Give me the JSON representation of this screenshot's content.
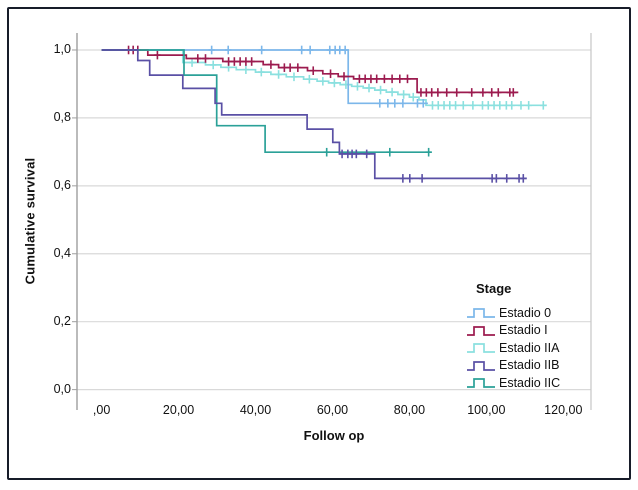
{
  "figure": {
    "ylabel": "Cumulative survival",
    "xlabel": "Follow op",
    "legend_title": "Stage"
  },
  "colors": {
    "grid": "#d9d9d9",
    "axis_line": "#9e9e9e",
    "right_border": "#c6c6c6",
    "figure_border": "#171c29",
    "text": "#111111"
  },
  "chart_data": {
    "type": "line",
    "subtype": "kaplan_meier_step",
    "title": "",
    "xlabel": "Follow op",
    "ylabel": "Cumulative survival",
    "legend_title": "Stage",
    "legend_position": "inside-right-bottom",
    "grid": "horizontal-only",
    "xlim": [
      -6.4,
      127.2
    ],
    "ylim": [
      -0.06,
      1.05
    ],
    "x_ticks": [
      0,
      20,
      40,
      60,
      80,
      100,
      120
    ],
    "x_tick_labels": [
      ",00",
      "20,00",
      "40,00",
      "60,00",
      "80,00",
      "100,00",
      "120,00"
    ],
    "y_ticks": [
      1.0,
      0.8,
      0.6,
      0.4,
      0.2,
      0.0
    ],
    "y_tick_labels": [
      "1,0",
      "0,8",
      "0,6",
      "0,4",
      "0,2",
      "0,0"
    ],
    "series": [
      {
        "name": "Estadio 0",
        "color": "#7cb7ea",
        "points": [
          [
            0,
            1
          ],
          [
            64.1,
            1
          ],
          [
            64.1,
            0.843
          ],
          [
            84.8,
            0.843
          ]
        ],
        "censors": [
          [
            28.6,
            1
          ],
          [
            32.9,
            1
          ],
          [
            41.6,
            1
          ],
          [
            52,
            1
          ],
          [
            54.2,
            1
          ],
          [
            59.3,
            1
          ],
          [
            60.7,
            1
          ],
          [
            61.9,
            1
          ],
          [
            63.3,
            1
          ],
          [
            72.3,
            0.843
          ],
          [
            74.4,
            0.843
          ],
          [
            76.2,
            0.843
          ],
          [
            78.3,
            0.843
          ],
          [
            82.1,
            0.843
          ],
          [
            83.6,
            0.843
          ]
        ]
      },
      {
        "name": "Estadio I",
        "color": "#9c1b4f",
        "points": [
          [
            0,
            1
          ],
          [
            12,
            1
          ],
          [
            12,
            0.985
          ],
          [
            22,
            0.985
          ],
          [
            22,
            0.975
          ],
          [
            31.5,
            0.975
          ],
          [
            31.5,
            0.966
          ],
          [
            42,
            0.966
          ],
          [
            42,
            0.957
          ],
          [
            46,
            0.957
          ],
          [
            46,
            0.948
          ],
          [
            53.5,
            0.948
          ],
          [
            53.5,
            0.939
          ],
          [
            57.5,
            0.939
          ],
          [
            57.5,
            0.93
          ],
          [
            61.5,
            0.93
          ],
          [
            61.5,
            0.922
          ],
          [
            65.5,
            0.922
          ],
          [
            65.5,
            0.915
          ],
          [
            82,
            0.915
          ],
          [
            82,
            0.875
          ],
          [
            108.3,
            0.875
          ]
        ],
        "censors": [
          [
            7,
            1
          ],
          [
            8.2,
            1
          ],
          [
            9.4,
            1
          ],
          [
            14.5,
            0.985
          ],
          [
            25,
            0.975
          ],
          [
            27,
            0.975
          ],
          [
            33,
            0.966
          ],
          [
            34.5,
            0.966
          ],
          [
            36,
            0.966
          ],
          [
            37.5,
            0.966
          ],
          [
            39,
            0.966
          ],
          [
            44,
            0.957
          ],
          [
            47.5,
            0.948
          ],
          [
            49,
            0.948
          ],
          [
            51,
            0.948
          ],
          [
            55,
            0.939
          ],
          [
            59.5,
            0.93
          ],
          [
            63,
            0.922
          ],
          [
            67,
            0.915
          ],
          [
            68.5,
            0.915
          ],
          [
            70,
            0.915
          ],
          [
            71.5,
            0.915
          ],
          [
            73.5,
            0.915
          ],
          [
            75.5,
            0.915
          ],
          [
            77.5,
            0.915
          ],
          [
            79.5,
            0.915
          ],
          [
            83,
            0.875
          ],
          [
            84.4,
            0.875
          ],
          [
            85.8,
            0.875
          ],
          [
            87.4,
            0.875
          ],
          [
            89.7,
            0.875
          ],
          [
            92.3,
            0.875
          ],
          [
            96.2,
            0.875
          ],
          [
            99.1,
            0.875
          ],
          [
            101.4,
            0.875
          ],
          [
            103.1,
            0.875
          ],
          [
            106.1,
            0.875
          ],
          [
            107,
            0.875
          ]
        ]
      },
      {
        "name": "Estadio IIA",
        "color": "#8be0df",
        "points": [
          [
            0,
            1
          ],
          [
            21.1,
            1
          ],
          [
            21.1,
            0.963
          ],
          [
            27,
            0.963
          ],
          [
            27,
            0.956
          ],
          [
            31,
            0.956
          ],
          [
            31,
            0.949
          ],
          [
            35,
            0.949
          ],
          [
            35,
            0.942
          ],
          [
            40,
            0.942
          ],
          [
            40,
            0.935
          ],
          [
            44,
            0.935
          ],
          [
            44,
            0.928
          ],
          [
            48,
            0.928
          ],
          [
            48,
            0.921
          ],
          [
            52.5,
            0.921
          ],
          [
            52.5,
            0.914
          ],
          [
            56,
            0.914
          ],
          [
            56,
            0.908
          ],
          [
            59,
            0.908
          ],
          [
            59,
            0.903
          ],
          [
            62,
            0.903
          ],
          [
            62,
            0.898
          ],
          [
            65,
            0.898
          ],
          [
            65,
            0.893
          ],
          [
            68,
            0.893
          ],
          [
            68,
            0.888
          ],
          [
            71,
            0.888
          ],
          [
            71,
            0.882
          ],
          [
            74,
            0.882
          ],
          [
            74,
            0.876
          ],
          [
            77,
            0.876
          ],
          [
            77,
            0.869
          ],
          [
            80,
            0.869
          ],
          [
            80,
            0.861
          ],
          [
            82.5,
            0.861
          ],
          [
            82.5,
            0.853
          ],
          [
            84.3,
            0.853
          ],
          [
            84.3,
            0.837
          ],
          [
            115.7,
            0.837
          ]
        ],
        "censors": [
          [
            23.5,
            0.963
          ],
          [
            29,
            0.956
          ],
          [
            33,
            0.949
          ],
          [
            37.5,
            0.942
          ],
          [
            41.5,
            0.935
          ],
          [
            46,
            0.928
          ],
          [
            50,
            0.921
          ],
          [
            54,
            0.914
          ],
          [
            57.5,
            0.908
          ],
          [
            60.5,
            0.903
          ],
          [
            63.5,
            0.898
          ],
          [
            66.5,
            0.893
          ],
          [
            69.5,
            0.888
          ],
          [
            72.5,
            0.882
          ],
          [
            75.5,
            0.876
          ],
          [
            78.5,
            0.869
          ],
          [
            81,
            0.861
          ],
          [
            86,
            0.837
          ],
          [
            87.5,
            0.837
          ],
          [
            89,
            0.837
          ],
          [
            90.5,
            0.837
          ],
          [
            92,
            0.837
          ],
          [
            94,
            0.837
          ],
          [
            96.5,
            0.837
          ],
          [
            99,
            0.837
          ],
          [
            100.5,
            0.837
          ],
          [
            102,
            0.837
          ],
          [
            103.5,
            0.837
          ],
          [
            105.2,
            0.837
          ],
          [
            106.6,
            0.837
          ],
          [
            109,
            0.837
          ],
          [
            111,
            0.837
          ],
          [
            114.8,
            0.837
          ]
        ]
      },
      {
        "name": "Estadio IIB",
        "color": "#5a50a5",
        "points": [
          [
            0,
            1
          ],
          [
            9.4,
            1
          ],
          [
            9.4,
            0.969
          ],
          [
            12.5,
            0.969
          ],
          [
            12.5,
            0.926
          ],
          [
            21.1,
            0.926
          ],
          [
            21.1,
            0.887
          ],
          [
            29.5,
            0.887
          ],
          [
            29.5,
            0.843
          ],
          [
            31.2,
            0.843
          ],
          [
            31.2,
            0.809
          ],
          [
            53.4,
            0.809
          ],
          [
            53.4,
            0.767
          ],
          [
            60.1,
            0.767
          ],
          [
            60.1,
            0.728
          ],
          [
            61.8,
            0.728
          ],
          [
            61.8,
            0.694
          ],
          [
            71,
            0.694
          ],
          [
            71,
            0.622
          ],
          [
            110.5,
            0.622
          ]
        ],
        "censors": [
          [
            62.5,
            0.694
          ],
          [
            64,
            0.694
          ],
          [
            65.1,
            0.694
          ],
          [
            66.2,
            0.694
          ],
          [
            68.9,
            0.694
          ],
          [
            78.3,
            0.622
          ],
          [
            80.1,
            0.622
          ],
          [
            83.3,
            0.622
          ],
          [
            101.5,
            0.622
          ],
          [
            102.6,
            0.622
          ],
          [
            105.3,
            0.622
          ],
          [
            108.5,
            0.622
          ],
          [
            109.6,
            0.622
          ]
        ]
      },
      {
        "name": "Estadio IIC",
        "color": "#2ba198",
        "points": [
          [
            0,
            1
          ],
          [
            21.4,
            1
          ],
          [
            21.4,
            0.926
          ],
          [
            29.9,
            0.926
          ],
          [
            29.9,
            0.777
          ],
          [
            42.5,
            0.777
          ],
          [
            42.5,
            0.699
          ],
          [
            85.8,
            0.699
          ]
        ],
        "censors": [
          [
            58.5,
            0.699
          ],
          [
            74.9,
            0.699
          ],
          [
            85,
            0.699
          ]
        ]
      }
    ]
  }
}
